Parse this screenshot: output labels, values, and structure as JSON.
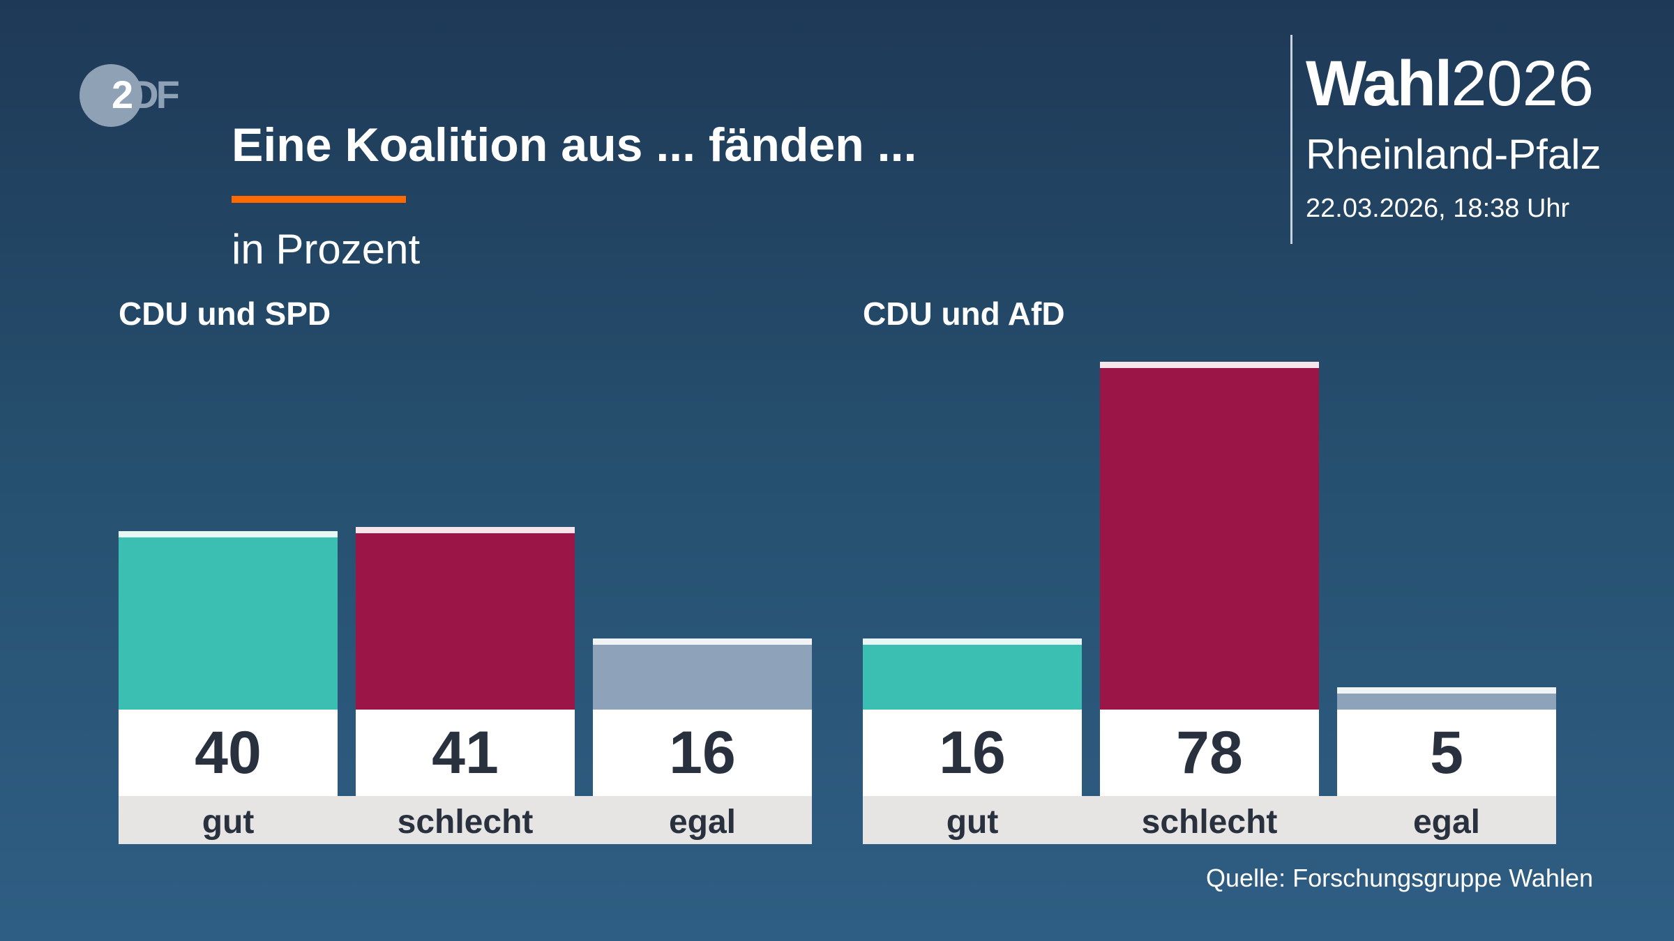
{
  "logo": {
    "text_a": "2",
    "text_b": "DF"
  },
  "header": {
    "title": "Eine Koalition aus ... fänden ...",
    "subtitle": "in Prozent",
    "accent_color": "#ff6a00"
  },
  "brand": {
    "bold": "Wahl",
    "year": "2026",
    "region": "Rheinland-Pfalz",
    "datetime": "22.03.2026, 18:38 Uhr"
  },
  "footer": {
    "source": "Quelle: Forschungsgruppe Wahlen"
  },
  "chart_data": {
    "type": "bar",
    "title": "Eine Koalition aus ... fänden ...",
    "subtitle": "in Prozent",
    "ylim": [
      0,
      100
    ],
    "grid": false,
    "categories": [
      "gut",
      "schlecht",
      "egal"
    ],
    "colors": {
      "gut": "#3bbfb2",
      "schlecht": "#9b1546",
      "egal": "#8ea3b9"
    },
    "cap_colors": {
      "gut": "#e8f7f5",
      "schlecht": "#f6e6ec",
      "egal": "#f1f4f6"
    },
    "groups": [
      {
        "name": "CDU und SPD",
        "values": [
          40,
          41,
          16
        ]
      },
      {
        "name": "CDU und AfD",
        "values": [
          16,
          78,
          5
        ]
      }
    ]
  }
}
